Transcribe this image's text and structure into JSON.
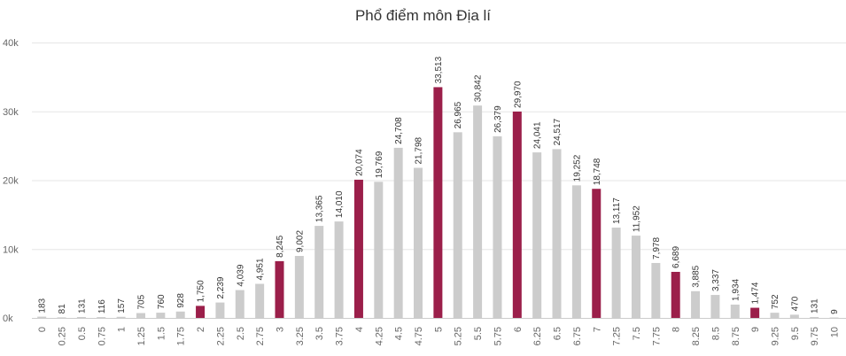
{
  "chart_data": {
    "type": "bar",
    "title": "Phổ điểm môn Địa lí",
    "xlabel": "",
    "ylabel": "",
    "ylim": [
      0,
      40000
    ],
    "y_ticks": [
      "0k",
      "10k",
      "20k",
      "30k",
      "40k"
    ],
    "grid": true,
    "colors": {
      "normal": "#cccccc",
      "highlight": "#9b1f4a",
      "grid": "#e6e6e6"
    },
    "categories": [
      "0",
      "0.25",
      "0.5",
      "0.75",
      "1",
      "1.25",
      "1.5",
      "1.75",
      "2",
      "2.25",
      "2.5",
      "2.75",
      "3",
      "3.25",
      "3.5",
      "3.75",
      "4",
      "4.25",
      "4.5",
      "4.75",
      "5",
      "5.25",
      "5.5",
      "5.75",
      "6",
      "6.25",
      "6.5",
      "6.75",
      "7",
      "7.25",
      "7.5",
      "7.75",
      "8",
      "8.25",
      "8.5",
      "8.75",
      "9",
      "9.25",
      "9.5",
      "9.75",
      "10"
    ],
    "values": [
      183,
      81,
      131,
      116,
      157,
      705,
      760,
      928,
      1750,
      2239,
      4039,
      4951,
      8245,
      9002,
      13365,
      14010,
      20074,
      19769,
      24708,
      21798,
      33513,
      26965,
      30842,
      26379,
      29970,
      24041,
      24517,
      19252,
      18748,
      13117,
      11952,
      7978,
      6689,
      3885,
      3337,
      1934,
      1474,
      752,
      470,
      131,
      9
    ],
    "value_labels": [
      "183",
      "81",
      "131",
      "116",
      "157",
      "705",
      "760",
      "928",
      "1,750",
      "2,239",
      "4,039",
      "4,951",
      "8,245",
      "9,002",
      "13,365",
      "14,010",
      "20,074",
      "19,769",
      "24,708",
      "21,798",
      "33,513",
      "26,965",
      "30,842",
      "26,379",
      "29,970",
      "24,041",
      "24,517",
      "19,252",
      "18,748",
      "13,117",
      "11,952",
      "7,978",
      "6,689",
      "3,885",
      "3,337",
      "1,934",
      "1,474",
      "752",
      "470",
      "131",
      "9"
    ],
    "highlight_categories": [
      "2",
      "3",
      "4",
      "5",
      "6",
      "7",
      "8",
      "9"
    ]
  }
}
